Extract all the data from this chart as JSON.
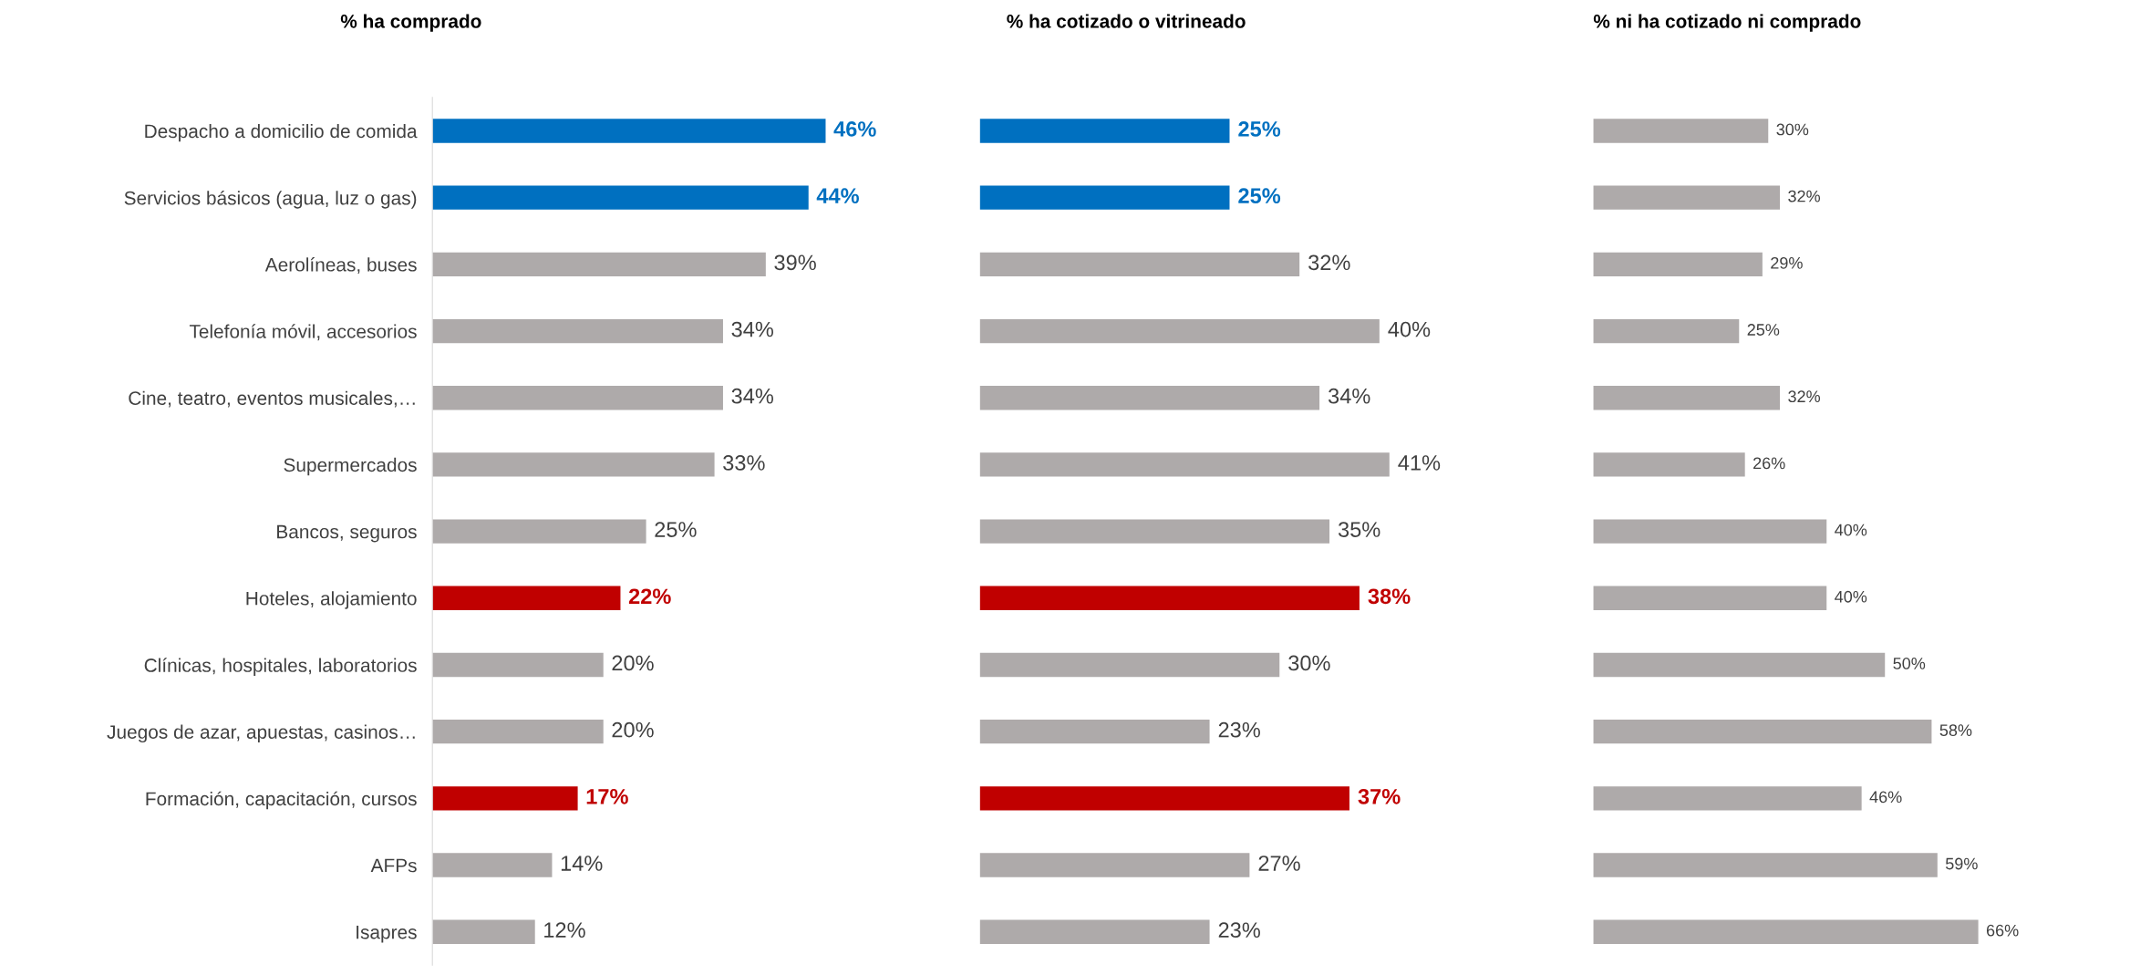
{
  "chart_data": [
    {
      "type": "bar",
      "orientation": "horizontal",
      "title": "% ha comprado",
      "tick_labels": "y",
      "data_labels": false,
      "categories": [
        "Despacho a domicilio de comida",
        "Servicios básicos (agua, luz o gas)",
        "Aerolíneas, buses",
        "Telefonía móvil, accesorios",
        "Cine, teatro, eventos musicales,…",
        "Supermercados",
        "Bancos, seguros",
        "Hoteles, alojamiento",
        "Clínicas, hospitales, laboratorios",
        "Juegos de azar, apuestas, casinos…",
        "Formación, capacitación, cursos",
        "AFPs",
        "Isapres"
      ],
      "values": [
        46,
        44,
        39,
        34,
        34,
        33,
        25,
        22,
        20,
        20,
        17,
        14,
        12
      ],
      "value_labels": [
        "46%",
        "44%",
        "39%",
        "34%",
        "34%",
        "33%",
        "25%",
        "22%",
        "20%",
        "20%",
        "17%",
        "14%",
        "12%"
      ],
      "colors": [
        "#0070c0",
        "#0070c0",
        "#aeaaaa",
        "#aeaaaa",
        "#aeaaaa",
        "#aeaaaa",
        "#aeaaaa",
        "#c00000",
        "#aeaaaa",
        "#aeaaaa",
        "#c00000",
        "#aeaaaa",
        "#aeaaaa"
      ]
    },
    {
      "type": "bar",
      "orientation": "horizontal",
      "title": "% ha cotizado o vitrineado",
      "tick_labels": false,
      "categories": [
        null,
        null,
        null,
        null,
        null,
        null,
        null,
        null,
        null,
        null,
        null,
        null,
        null
      ],
      "values": [
        25,
        25,
        32,
        40,
        34,
        41,
        35,
        38,
        30,
        23,
        37,
        27,
        23
      ],
      "value_labels": [
        "25%",
        "25%",
        "32%",
        "40%",
        "34%",
        "41%",
        "35%",
        "38%",
        "30%",
        "23%",
        "37%",
        "27%",
        "23%"
      ],
      "colors": [
        "#0070c0",
        "#0070c0",
        "#aeaaaa",
        "#aeaaaa",
        "#aeaaaa",
        "#aeaaaa",
        "#aeaaaa",
        "#c00000",
        "#aeaaaa",
        "#aeaaaa",
        "#c00000",
        "#aeaaaa",
        "#aeaaaa"
      ]
    },
    {
      "type": "bar",
      "orientation": "horizontal",
      "title": "% ni ha cotizado ni comprado",
      "tick_labels": false,
      "categories": [
        null,
        null,
        null,
        null,
        null,
        null,
        null,
        null,
        null,
        null,
        null,
        null,
        null
      ],
      "values": [
        30,
        32,
        29,
        25,
        32,
        26,
        40,
        40,
        50,
        58,
        46,
        59,
        66
      ],
      "value_labels": [
        "30%",
        "32%",
        "29%",
        "25%",
        "32%",
        "26%",
        "40%",
        "40%",
        "50%",
        "58%",
        "46%",
        "59%",
        "66%"
      ],
      "colors": [
        "#aeaaaa",
        "#aeaaaa",
        "#aeaaaa",
        "#aeaaaa",
        "#aeaaaa",
        "#aeaaaa",
        "#aeaaaa",
        "#aeaaaa",
        "#aeaaaa",
        "#aeaaaa",
        "#aeaaaa",
        "#aeaaaa",
        "#aeaaaa"
      ]
    }
  ]
}
